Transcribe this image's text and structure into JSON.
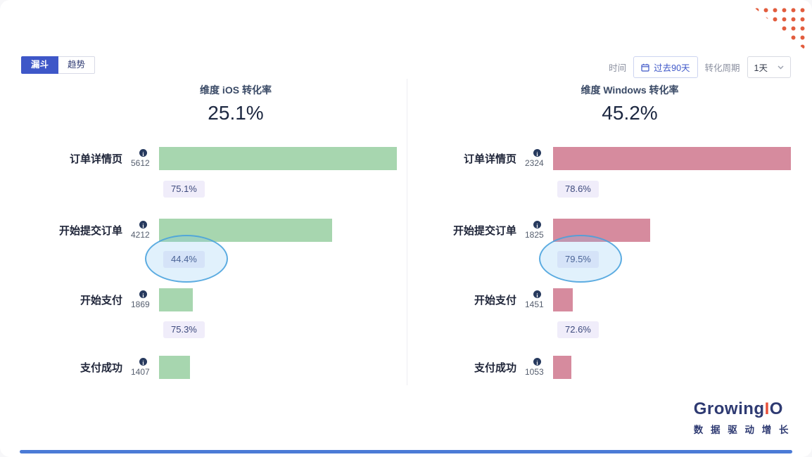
{
  "tabs": [
    {
      "label": "漏斗",
      "active": true
    },
    {
      "label": "趋势",
      "active": false
    }
  ],
  "toolbar": {
    "time_label": "时间",
    "time_range_value": "过去90天",
    "period_label": "转化周期",
    "period_value": "1天"
  },
  "colors": {
    "accent_blue": "#3e57c8",
    "ios_bar": "#a7d6af",
    "windows_bar": "#d68b9e",
    "chip_bg": "#f0edfa",
    "chip_text": "#3d4a7d",
    "highlight_blue": "#45a0dc",
    "bottom_line_blue": "#4b7bd6",
    "logo_navy": "#2e3a72",
    "logo_red": "#e8503a",
    "dots_orange": "#e25c3d"
  },
  "chart_data": [
    {
      "type": "funnel",
      "title": "维度 iOS 转化率",
      "overall_rate": "25.1%",
      "bar_color": "#a7d6af",
      "steps": [
        {
          "label": "订单详情页",
          "value": 5612,
          "bar_pct": 97.7
        },
        {
          "label": "开始提交订单",
          "value": 4212,
          "bar_pct": 71
        },
        {
          "label": "开始支付",
          "value": 1869,
          "bar_pct": 14
        },
        {
          "label": "支付成功",
          "value": 1407,
          "bar_pct": 12.7
        }
      ],
      "step_conversions": [
        "75.1%",
        "44.4%",
        "75.3%"
      ],
      "highlighted_conversion": "44.4%"
    },
    {
      "type": "funnel",
      "title": "维度 Windows 转化率",
      "overall_rate": "45.2%",
      "bar_color": "#d68b9e",
      "steps": [
        {
          "label": "订单详情页",
          "value": 2324,
          "bar_pct": 97.7
        },
        {
          "label": "开始提交订单",
          "value": 1825,
          "bar_pct": 40
        },
        {
          "label": "开始支付",
          "value": 1451,
          "bar_pct": 8
        },
        {
          "label": "支付成功",
          "value": 1053,
          "bar_pct": 7.5
        }
      ],
      "step_conversions": [
        "78.6%",
        "79.5%",
        "72.6%"
      ],
      "highlighted_conversion": "79.5%"
    }
  ],
  "footer": {
    "logo_part1": "Growing",
    "logo_part2": "I",
    "logo_part3": "O",
    "tagline": "数 据 驱 动 增 长"
  }
}
